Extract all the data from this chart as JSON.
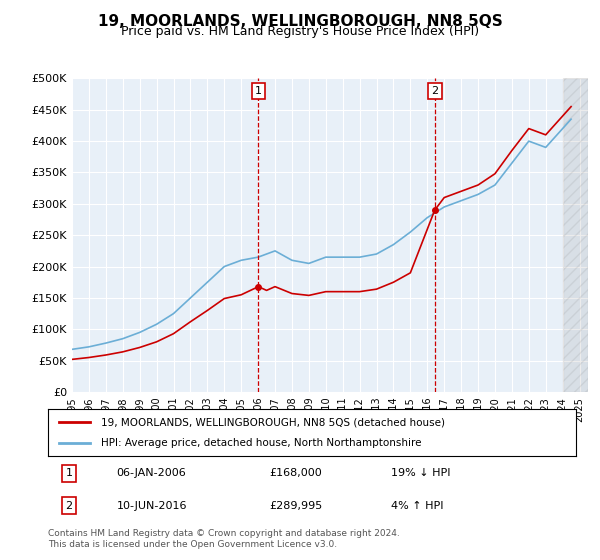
{
  "title": "19, MOORLANDS, WELLINGBOROUGH, NN8 5QS",
  "subtitle": "Price paid vs. HM Land Registry's House Price Index (HPI)",
  "legend_line1": "19, MOORLANDS, WELLINGBOROUGH, NN8 5QS (detached house)",
  "legend_line2": "HPI: Average price, detached house, North Northamptonshire",
  "annotation1_label": "1",
  "annotation1_date": "06-JAN-2006",
  "annotation1_price": "£168,000",
  "annotation1_hpi": "19% ↓ HPI",
  "annotation2_label": "2",
  "annotation2_date": "10-JUN-2016",
  "annotation2_price": "£289,995",
  "annotation2_hpi": "4% ↑ HPI",
  "footer": "Contains HM Land Registry data © Crown copyright and database right 2024.\nThis data is licensed under the Open Government Licence v3.0.",
  "sale1_year": 2006.02,
  "sale1_price": 168000,
  "sale2_year": 2016.44,
  "sale2_price": 289995,
  "hpi_color": "#6baed6",
  "sale_color": "#cc0000",
  "background_color": "#e8f0f8",
  "plot_bg": "#e8f0f8",
  "grid_color": "#ffffff",
  "ylim": [
    0,
    500000
  ],
  "yticks": [
    0,
    50000,
    100000,
    150000,
    200000,
    250000,
    300000,
    350000,
    400000,
    450000,
    500000
  ],
  "xlim_start": 1995,
  "xlim_end": 2025.5
}
